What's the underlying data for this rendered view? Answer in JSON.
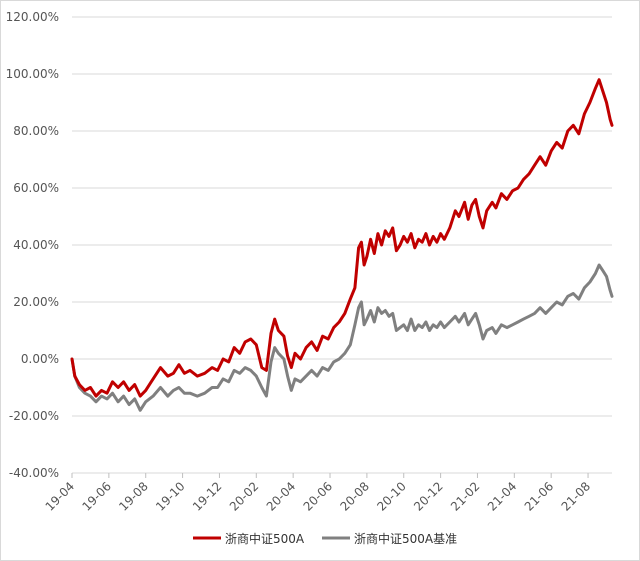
{
  "chart_data": {
    "type": "line",
    "title": "",
    "xlabel": "",
    "ylabel": "",
    "ylim": [
      -40,
      120
    ],
    "y_ticks": [
      "120.00%",
      "100.00%",
      "80.00%",
      "60.00%",
      "40.00%",
      "20.00%",
      "0.00%",
      "-20.00%",
      "-40.00%"
    ],
    "y_tick_values": [
      120,
      100,
      80,
      60,
      40,
      20,
      0,
      -20,
      -40
    ],
    "x_ticks": [
      "19-04",
      "19-06",
      "19-08",
      "19-10",
      "19-12",
      "20-02",
      "20-04",
      "20-06",
      "20-08",
      "20-10",
      "20-12",
      "21-02",
      "21-04",
      "21-06",
      "21-08"
    ],
    "x_tick_months": [
      0,
      2,
      4,
      6,
      8,
      10,
      12,
      14,
      16,
      18,
      20,
      22,
      24,
      26,
      28
    ],
    "x_range_months": [
      0,
      29.3
    ],
    "grid": "horizontal",
    "legend_position": "bottom-center",
    "series": [
      {
        "name": "浙商中证500A",
        "color": "#c00000",
        "points": [
          [
            0,
            0
          ],
          [
            0.15,
            -6
          ],
          [
            0.4,
            -9
          ],
          [
            0.7,
            -11
          ],
          [
            1.0,
            -10
          ],
          [
            1.3,
            -13
          ],
          [
            1.6,
            -11
          ],
          [
            1.9,
            -12
          ],
          [
            2.2,
            -8
          ],
          [
            2.5,
            -10
          ],
          [
            2.8,
            -8
          ],
          [
            3.1,
            -11
          ],
          [
            3.4,
            -9
          ],
          [
            3.7,
            -13
          ],
          [
            4.0,
            -11
          ],
          [
            4.4,
            -7
          ],
          [
            4.8,
            -3
          ],
          [
            5.2,
            -6
          ],
          [
            5.5,
            -5
          ],
          [
            5.8,
            -2
          ],
          [
            6.1,
            -5
          ],
          [
            6.4,
            -4
          ],
          [
            6.8,
            -6
          ],
          [
            7.2,
            -5
          ],
          [
            7.6,
            -3
          ],
          [
            7.9,
            -4
          ],
          [
            8.2,
            0
          ],
          [
            8.5,
            -1
          ],
          [
            8.8,
            4
          ],
          [
            9.1,
            2
          ],
          [
            9.4,
            6
          ],
          [
            9.7,
            7
          ],
          [
            10.0,
            5
          ],
          [
            10.3,
            -3
          ],
          [
            10.55,
            -4
          ],
          [
            10.8,
            9
          ],
          [
            11.0,
            14
          ],
          [
            11.2,
            10
          ],
          [
            11.5,
            8
          ],
          [
            11.7,
            1
          ],
          [
            11.9,
            -3
          ],
          [
            12.1,
            2
          ],
          [
            12.4,
            0
          ],
          [
            12.7,
            4
          ],
          [
            13.0,
            6
          ],
          [
            13.3,
            3
          ],
          [
            13.6,
            8
          ],
          [
            13.9,
            7
          ],
          [
            14.2,
            11
          ],
          [
            14.5,
            13
          ],
          [
            14.8,
            16
          ],
          [
            15.1,
            21
          ],
          [
            15.35,
            25
          ],
          [
            15.55,
            39
          ],
          [
            15.7,
            41
          ],
          [
            15.85,
            33
          ],
          [
            16.0,
            36
          ],
          [
            16.2,
            42
          ],
          [
            16.4,
            37
          ],
          [
            16.6,
            44
          ],
          [
            16.8,
            40
          ],
          [
            17.0,
            45
          ],
          [
            17.2,
            43
          ],
          [
            17.4,
            46
          ],
          [
            17.6,
            38
          ],
          [
            17.8,
            40
          ],
          [
            18.0,
            43
          ],
          [
            18.2,
            41
          ],
          [
            18.4,
            44
          ],
          [
            18.6,
            39
          ],
          [
            18.8,
            42
          ],
          [
            19.0,
            41
          ],
          [
            19.2,
            44
          ],
          [
            19.4,
            40
          ],
          [
            19.6,
            43
          ],
          [
            19.8,
            41
          ],
          [
            20.0,
            44
          ],
          [
            20.2,
            42
          ],
          [
            20.5,
            46
          ],
          [
            20.8,
            52
          ],
          [
            21.0,
            50
          ],
          [
            21.3,
            55
          ],
          [
            21.5,
            49
          ],
          [
            21.7,
            54
          ],
          [
            21.9,
            56
          ],
          [
            22.1,
            50
          ],
          [
            22.3,
            46
          ],
          [
            22.5,
            52
          ],
          [
            22.8,
            55
          ],
          [
            23.0,
            53
          ],
          [
            23.3,
            58
          ],
          [
            23.6,
            56
          ],
          [
            23.9,
            59
          ],
          [
            24.2,
            60
          ],
          [
            24.5,
            63
          ],
          [
            24.8,
            65
          ],
          [
            25.1,
            68
          ],
          [
            25.4,
            71
          ],
          [
            25.7,
            68
          ],
          [
            26.0,
            73
          ],
          [
            26.3,
            76
          ],
          [
            26.6,
            74
          ],
          [
            26.9,
            80
          ],
          [
            27.2,
            82
          ],
          [
            27.5,
            79
          ],
          [
            27.8,
            86
          ],
          [
            28.1,
            90
          ],
          [
            28.4,
            95
          ],
          [
            28.6,
            98
          ],
          [
            28.8,
            94
          ],
          [
            29.0,
            90
          ],
          [
            29.2,
            84
          ],
          [
            29.3,
            82
          ]
        ]
      },
      {
        "name": "浙商中证500A基准",
        "color": "#808080",
        "points": [
          [
            0,
            0
          ],
          [
            0.15,
            -6
          ],
          [
            0.4,
            -10
          ],
          [
            0.7,
            -12
          ],
          [
            1.0,
            -13
          ],
          [
            1.3,
            -15
          ],
          [
            1.6,
            -13
          ],
          [
            1.9,
            -14
          ],
          [
            2.2,
            -12
          ],
          [
            2.5,
            -15
          ],
          [
            2.8,
            -13
          ],
          [
            3.1,
            -16
          ],
          [
            3.4,
            -14
          ],
          [
            3.7,
            -18
          ],
          [
            4.0,
            -15
          ],
          [
            4.4,
            -13
          ],
          [
            4.8,
            -10
          ],
          [
            5.2,
            -13
          ],
          [
            5.5,
            -11
          ],
          [
            5.8,
            -10
          ],
          [
            6.1,
            -12
          ],
          [
            6.4,
            -12
          ],
          [
            6.8,
            -13
          ],
          [
            7.2,
            -12
          ],
          [
            7.6,
            -10
          ],
          [
            7.9,
            -10
          ],
          [
            8.2,
            -7
          ],
          [
            8.5,
            -8
          ],
          [
            8.8,
            -4
          ],
          [
            9.1,
            -5
          ],
          [
            9.4,
            -3
          ],
          [
            9.7,
            -4
          ],
          [
            10.0,
            -6
          ],
          [
            10.3,
            -10
          ],
          [
            10.55,
            -13
          ],
          [
            10.8,
            -1
          ],
          [
            11.0,
            4
          ],
          [
            11.2,
            2
          ],
          [
            11.5,
            0
          ],
          [
            11.7,
            -6
          ],
          [
            11.9,
            -11
          ],
          [
            12.1,
            -7
          ],
          [
            12.4,
            -8
          ],
          [
            12.7,
            -6
          ],
          [
            13.0,
            -4
          ],
          [
            13.3,
            -6
          ],
          [
            13.6,
            -3
          ],
          [
            13.9,
            -4
          ],
          [
            14.2,
            -1
          ],
          [
            14.5,
            0
          ],
          [
            14.8,
            2
          ],
          [
            15.1,
            5
          ],
          [
            15.35,
            12
          ],
          [
            15.55,
            18
          ],
          [
            15.7,
            20
          ],
          [
            15.85,
            12
          ],
          [
            16.0,
            14
          ],
          [
            16.2,
            17
          ],
          [
            16.4,
            13
          ],
          [
            16.6,
            18
          ],
          [
            16.8,
            16
          ],
          [
            17.0,
            17
          ],
          [
            17.2,
            15
          ],
          [
            17.4,
            16
          ],
          [
            17.6,
            10
          ],
          [
            17.8,
            11
          ],
          [
            18.0,
            12
          ],
          [
            18.2,
            10
          ],
          [
            18.4,
            14
          ],
          [
            18.6,
            10
          ],
          [
            18.8,
            12
          ],
          [
            19.0,
            11
          ],
          [
            19.2,
            13
          ],
          [
            19.4,
            10
          ],
          [
            19.6,
            12
          ],
          [
            19.8,
            11
          ],
          [
            20.0,
            13
          ],
          [
            20.2,
            11
          ],
          [
            20.5,
            13
          ],
          [
            20.8,
            15
          ],
          [
            21.0,
            13
          ],
          [
            21.3,
            16
          ],
          [
            21.5,
            12
          ],
          [
            21.7,
            14
          ],
          [
            21.9,
            16
          ],
          [
            22.1,
            12
          ],
          [
            22.3,
            7
          ],
          [
            22.5,
            10
          ],
          [
            22.8,
            11
          ],
          [
            23.0,
            9
          ],
          [
            23.3,
            12
          ],
          [
            23.6,
            11
          ],
          [
            23.9,
            12
          ],
          [
            24.2,
            13
          ],
          [
            24.5,
            14
          ],
          [
            24.8,
            15
          ],
          [
            25.1,
            16
          ],
          [
            25.4,
            18
          ],
          [
            25.7,
            16
          ],
          [
            26.0,
            18
          ],
          [
            26.3,
            20
          ],
          [
            26.6,
            19
          ],
          [
            26.9,
            22
          ],
          [
            27.2,
            23
          ],
          [
            27.5,
            21
          ],
          [
            27.8,
            25
          ],
          [
            28.1,
            27
          ],
          [
            28.4,
            30
          ],
          [
            28.6,
            33
          ],
          [
            28.8,
            31
          ],
          [
            29.0,
            29
          ],
          [
            29.2,
            24
          ],
          [
            29.3,
            22
          ]
        ]
      }
    ]
  }
}
